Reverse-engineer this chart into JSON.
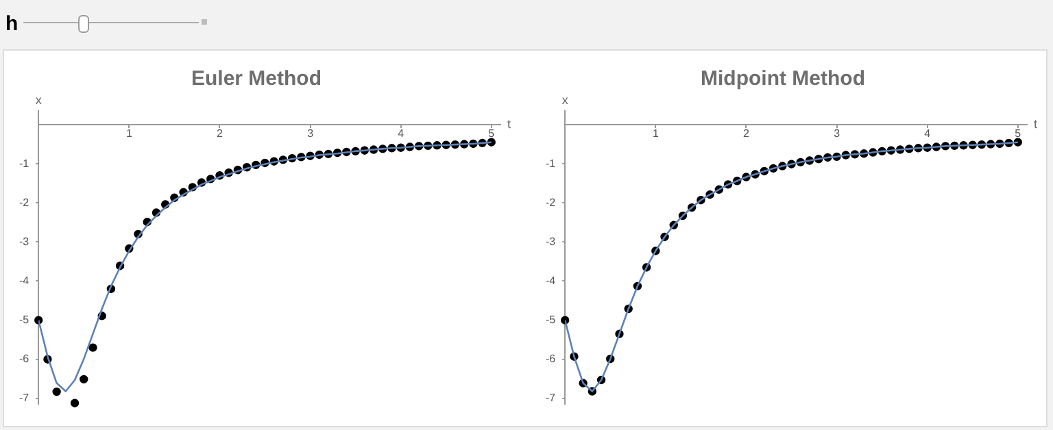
{
  "chart_data": [
    {
      "type": "scatter",
      "title": "Euler Method",
      "xlabel": "t",
      "ylabel": "x",
      "annotations": [
        "h"
      ],
      "x": [
        0,
        0.1,
        0.2,
        0.3,
        0.4,
        0.5,
        0.6,
        0.7,
        0.8,
        0.9,
        1,
        1.1,
        1.2,
        1.3,
        1.4,
        1.5,
        1.6,
        1.7,
        1.8,
        1.9,
        2,
        2.1,
        2.2,
        2.3,
        2.4,
        2.5,
        2.6,
        2.7,
        2.8,
        2.9,
        3,
        3.1,
        3.2,
        3.3,
        3.4,
        3.5,
        3.6,
        3.7,
        3.8,
        3.9,
        4,
        4.1,
        4.2,
        4.3,
        4.4,
        4.5,
        4.6,
        4.7,
        4.8,
        4.9,
        5
      ],
      "series": [
        {
          "type": "line",
          "marker": "none",
          "color": "#5e81b5",
          "values": [
            -5,
            -5.93,
            -6.61,
            -6.82,
            -6.53,
            -5.99,
            -5.35,
            -4.71,
            -4.13,
            -3.65,
            -3.23,
            -2.87,
            -2.57,
            -2.33,
            -2.12,
            -1.93,
            -1.79,
            -1.66,
            -1.53,
            -1.44,
            -1.34,
            -1.27,
            -1.19,
            -1.12,
            -1.06,
            -1.01,
            -0.96,
            -0.92,
            -0.88,
            -0.84,
            -0.82,
            -0.78,
            -0.76,
            -0.74,
            -0.71,
            -0.68,
            -0.66,
            -0.64,
            -0.62,
            -0.6,
            -0.59,
            -0.57,
            -0.55,
            -0.54,
            -0.53,
            -0.52,
            -0.51,
            -0.5,
            -0.49,
            -0.47,
            -0.45
          ]
        },
        {
          "type": "scatter",
          "marker": "circle",
          "color": "#000000",
          "values": [
            -5,
            -6.0,
            -6.83,
            null,
            -7.12,
            -6.51,
            -5.7,
            -4.89,
            -4.2,
            -3.61,
            -3.17,
            -2.8,
            -2.49,
            -2.25,
            -2.04,
            -1.87,
            -1.73,
            -1.6,
            -1.48,
            -1.39,
            -1.3,
            -1.23,
            -1.16,
            -1.09,
            -1.03,
            -0.98,
            -0.94,
            -0.9,
            -0.86,
            -0.83,
            -0.8,
            -0.77,
            -0.75,
            -0.72,
            -0.7,
            -0.68,
            -0.66,
            -0.64,
            -0.62,
            -0.6,
            -0.59,
            -0.57,
            -0.55,
            -0.54,
            -0.53,
            -0.52,
            -0.51,
            -0.5,
            -0.49,
            -0.47,
            -0.45
          ]
        }
      ],
      "xlim": [
        0,
        5.1
      ],
      "ylim": [
        -7.15,
        0.35
      ],
      "xticks": [
        1,
        2,
        3,
        4,
        5
      ],
      "yticks": [
        -1,
        -2,
        -3,
        -4,
        -5,
        -6,
        -7
      ]
    },
    {
      "type": "scatter",
      "title": "Midpoint Method",
      "xlabel": "t",
      "ylabel": "x",
      "x": [
        0,
        0.1,
        0.2,
        0.3,
        0.4,
        0.5,
        0.6,
        0.7,
        0.8,
        0.9,
        1,
        1.1,
        1.2,
        1.3,
        1.4,
        1.5,
        1.6,
        1.7,
        1.8,
        1.9,
        2,
        2.1,
        2.2,
        2.3,
        2.4,
        2.5,
        2.6,
        2.7,
        2.8,
        2.9,
        3,
        3.1,
        3.2,
        3.3,
        3.4,
        3.5,
        3.6,
        3.7,
        3.8,
        3.9,
        4,
        4.1,
        4.2,
        4.3,
        4.4,
        4.5,
        4.6,
        4.7,
        4.8,
        4.9,
        5
      ],
      "series": [
        {
          "type": "line",
          "marker": "none",
          "color": "#5e81b5",
          "values": [
            -5,
            -5.93,
            -6.61,
            -6.82,
            -6.53,
            -5.99,
            -5.35,
            -4.71,
            -4.13,
            -3.65,
            -3.23,
            -2.87,
            -2.57,
            -2.33,
            -2.12,
            -1.93,
            -1.79,
            -1.66,
            -1.53,
            -1.44,
            -1.34,
            -1.27,
            -1.19,
            -1.12,
            -1.06,
            -1.01,
            -0.96,
            -0.92,
            -0.88,
            -0.84,
            -0.82,
            -0.78,
            -0.76,
            -0.74,
            -0.71,
            -0.68,
            -0.66,
            -0.64,
            -0.62,
            -0.6,
            -0.59,
            -0.57,
            -0.55,
            -0.54,
            -0.53,
            -0.52,
            -0.51,
            -0.5,
            -0.49,
            -0.47,
            -0.45
          ]
        },
        {
          "type": "scatter",
          "marker": "circle",
          "color": "#000000",
          "values": [
            -5,
            -5.93,
            -6.61,
            -6.82,
            -6.53,
            -5.99,
            -5.35,
            -4.71,
            -4.13,
            -3.65,
            -3.23,
            -2.87,
            -2.57,
            -2.33,
            -2.12,
            -1.93,
            -1.79,
            -1.66,
            -1.53,
            -1.44,
            -1.34,
            -1.27,
            -1.19,
            -1.12,
            -1.06,
            -1.01,
            -0.96,
            -0.92,
            -0.88,
            -0.84,
            -0.82,
            -0.78,
            -0.76,
            -0.74,
            -0.71,
            -0.68,
            -0.66,
            -0.64,
            -0.62,
            -0.6,
            -0.59,
            -0.57,
            -0.55,
            -0.54,
            -0.53,
            -0.52,
            -0.51,
            -0.5,
            -0.49,
            -0.47,
            -0.45
          ]
        }
      ],
      "xlim": [
        0,
        5.1
      ],
      "ylim": [
        -7.15,
        0.35
      ],
      "xticks": [
        1,
        2,
        3,
        4,
        5
      ],
      "yticks": [
        -1,
        -2,
        -3,
        -4,
        -5,
        -6,
        -7
      ]
    }
  ]
}
